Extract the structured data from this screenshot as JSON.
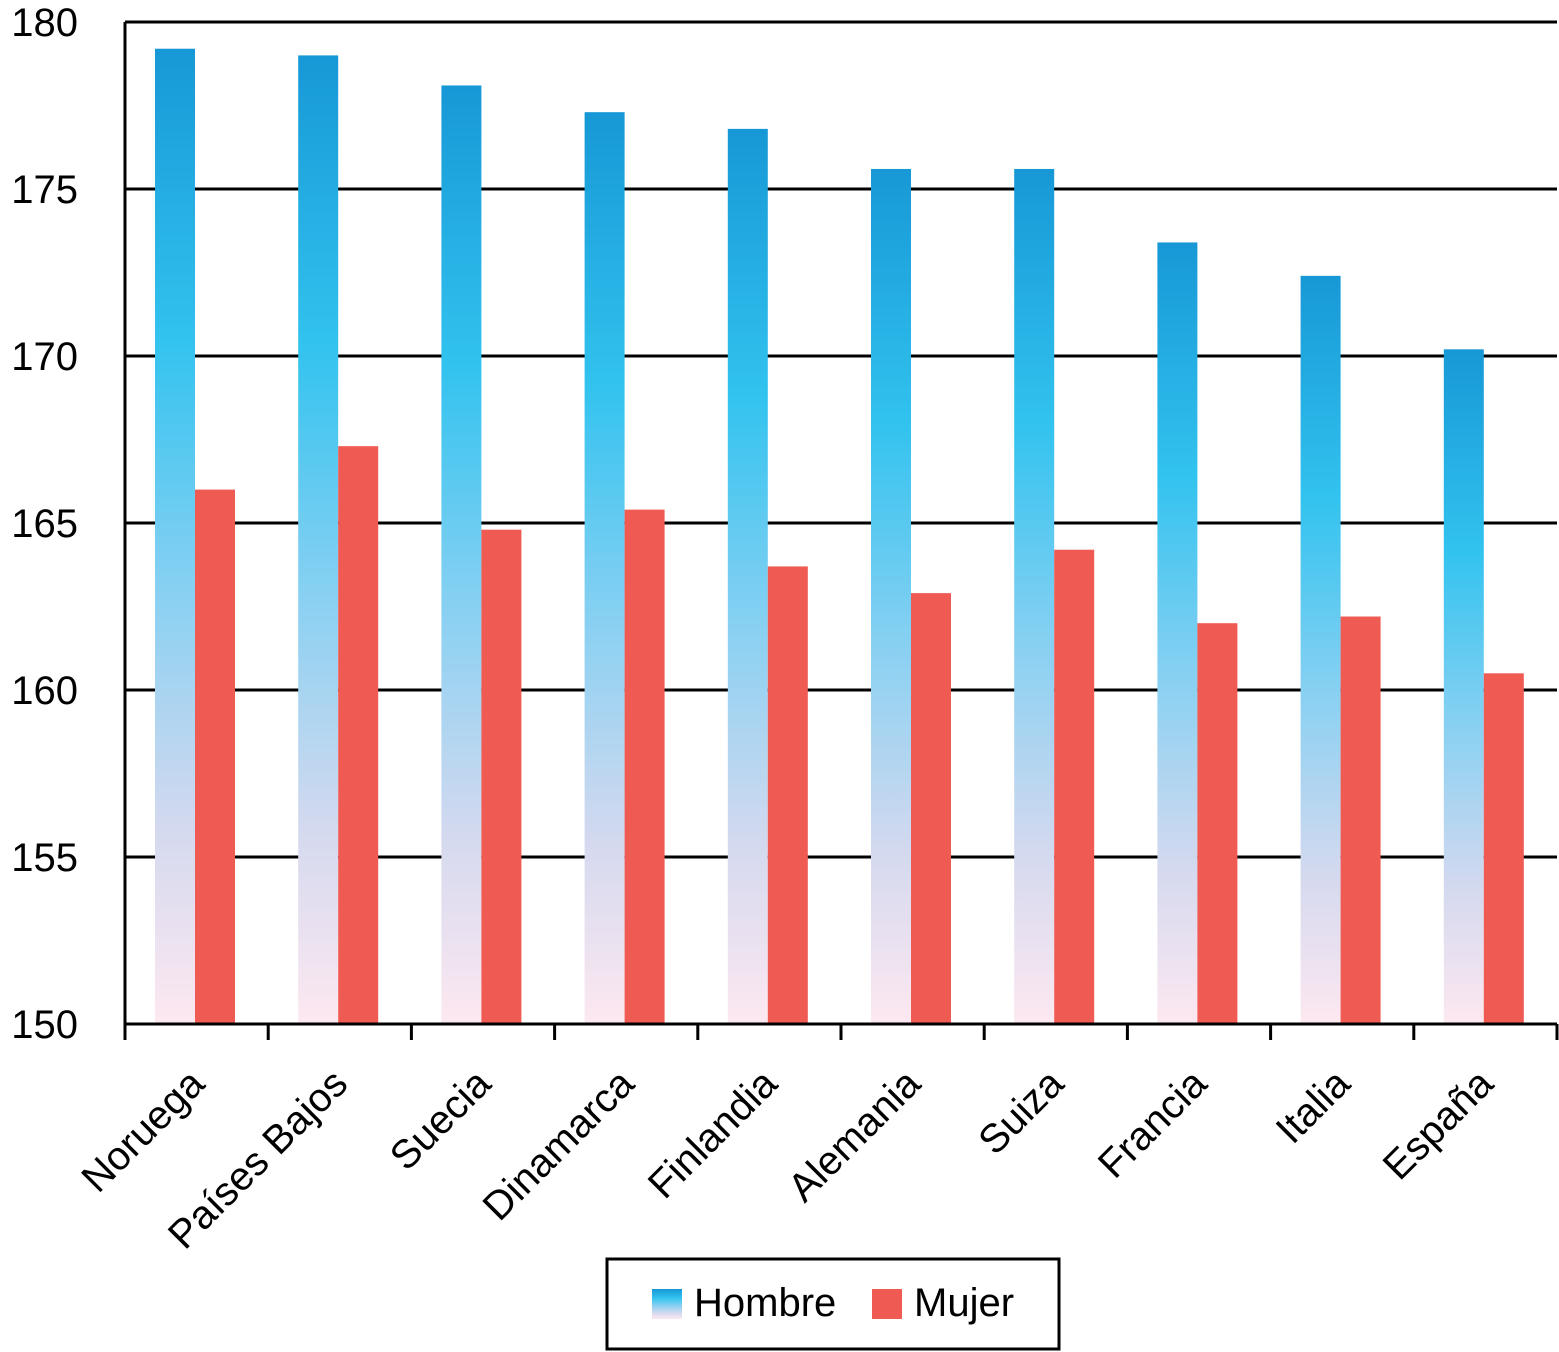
{
  "chart_data": {
    "type": "bar",
    "categories": [
      "Noruega",
      "Países Bajos",
      "Suecia",
      "Dinamarca",
      "Finlandia",
      "Alemania",
      "Suiza",
      "Francia",
      "Italia",
      "España"
    ],
    "series": [
      {
        "name": "Hombre",
        "color": "#1ba1dc",
        "values": [
          179.2,
          179.0,
          178.1,
          177.3,
          176.8,
          175.6,
          175.6,
          173.4,
          172.4,
          170.2
        ]
      },
      {
        "name": "Mujer",
        "color": "#ef5a52",
        "values": [
          166.0,
          167.3,
          164.8,
          165.4,
          163.7,
          162.9,
          164.2,
          162.0,
          162.2,
          160.5
        ]
      }
    ],
    "ylim": [
      150,
      180
    ],
    "yticks": [
      150,
      155,
      160,
      165,
      170,
      175,
      180
    ],
    "grid": true
  }
}
